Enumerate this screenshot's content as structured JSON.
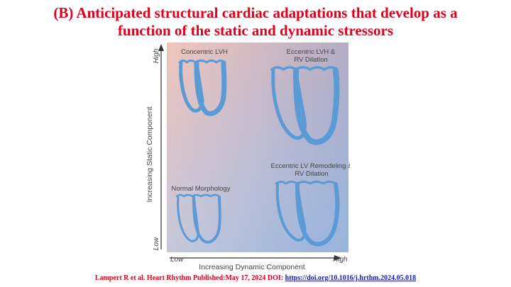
{
  "title": {
    "line1": "(B) Anticipated structural cardiac adaptations that develop as a",
    "line2": "function of the static and dynamic stressors"
  },
  "diagram": {
    "y_axis": {
      "label": "Increasing Static Component",
      "low": "Low",
      "high": "High"
    },
    "x_axis": {
      "label": "Increasing Dynamic Component",
      "low": "Low",
      "high": "High"
    },
    "quadrants": {
      "top_left": "Concentric LVH",
      "top_right_1": "Eccentric LVH &",
      "top_right_2": "RV Dilation",
      "bottom_left": "Normal Morphology",
      "bottom_right_1": "Eccentric LV Remodeling &",
      "bottom_right_2": "RV Dilation"
    },
    "colors": {
      "heart": "#5b9bd5",
      "top_left_bg": "#f2c4b8",
      "top_right_bg": "#b48ea4",
      "bottom_right_bg": "#9db8dc",
      "bottom_left_bg": "#f4f1f2"
    }
  },
  "footer": {
    "text": "Lampert R et al. Heart Rhythm Published:May 17, 2024 DOI: ",
    "link": "https://doi.org/10.1016/j.hrthm.2024.05.018"
  }
}
